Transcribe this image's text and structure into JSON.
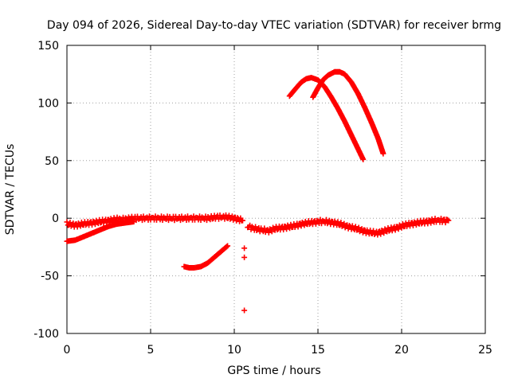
{
  "chart_data": {
    "type": "scatter",
    "title": "Day 094 of 2026, Sidereal Day-to-day VTEC variation (SDTVAR) for receiver brmg",
    "xlabel": "GPS time / hours",
    "ylabel": "SDTVAR / TECUs",
    "xlim": [
      0,
      25
    ],
    "ylim": [
      -100,
      150
    ],
    "xticks": [
      0,
      5,
      10,
      15,
      20,
      25
    ],
    "yticks": [
      -100,
      -50,
      0,
      50,
      100,
      150
    ],
    "grid": true,
    "marker": "plus",
    "color": "#ff0000",
    "series": [
      {
        "name": "baseline",
        "x": [
          0.0,
          0.5,
          1.0,
          1.5,
          2.0,
          2.5,
          3.0,
          3.5,
          4.0,
          4.5,
          5.0,
          5.5,
          6.0,
          6.5,
          7.0,
          7.5,
          8.0,
          8.5,
          9.0,
          9.5,
          10.0,
          10.5
        ],
        "y": [
          -5,
          -6,
          -5,
          -4,
          -3,
          -2,
          -1,
          -1,
          0,
          0,
          0,
          0,
          0,
          0,
          0,
          0,
          0,
          0,
          1,
          1,
          0,
          -2
        ]
      },
      {
        "name": "baseline-2",
        "x": [
          10.8,
          11.2,
          11.6,
          12.0,
          12.5,
          13.0,
          13.5,
          14.0,
          14.5,
          15.0,
          15.5,
          16.0,
          16.5,
          17.0,
          17.5,
          18.0,
          18.5,
          19.0,
          19.5,
          20.0,
          20.5,
          21.0,
          21.5,
          22.0,
          22.5,
          22.8
        ],
        "y": [
          -7,
          -9,
          -10,
          -11,
          -9,
          -8,
          -7,
          -5,
          -4,
          -3,
          -3,
          -4,
          -6,
          -8,
          -10,
          -12,
          -13,
          -11,
          -9,
          -7,
          -5,
          -4,
          -3,
          -2,
          -2,
          -2
        ]
      },
      {
        "name": "ramp-early",
        "x": [
          0.0,
          0.5,
          1.0,
          1.5,
          2.0,
          2.5,
          3.0,
          3.5,
          4.0
        ],
        "y": [
          -20,
          -19,
          -16,
          -13,
          -10,
          -7,
          -5,
          -4,
          -3
        ]
      },
      {
        "name": "ramp-mid",
        "x": [
          7.0,
          7.3,
          7.6,
          8.0,
          8.4,
          8.8,
          9.2,
          9.6
        ],
        "y": [
          -42,
          -43,
          -43,
          -42,
          -39,
          -34,
          -29,
          -24
        ]
      },
      {
        "name": "outliers",
        "x": [
          10.6,
          10.6,
          10.6
        ],
        "y": [
          -26,
          -34,
          -80
        ]
      },
      {
        "name": "arc-1",
        "x": [
          13.3,
          13.7,
          14.0,
          14.3,
          14.6,
          15.0,
          15.4,
          15.8,
          16.2,
          16.6,
          17.0,
          17.4,
          17.7
        ],
        "y": [
          106,
          113,
          118,
          121,
          122,
          120,
          114,
          105,
          95,
          84,
          72,
          60,
          51
        ]
      },
      {
        "name": "arc-2",
        "x": [
          14.7,
          15.0,
          15.3,
          15.6,
          16.0,
          16.3,
          16.6,
          17.0,
          17.4,
          17.8,
          18.2,
          18.6,
          18.9
        ],
        "y": [
          105,
          113,
          120,
          124,
          127,
          127,
          125,
          118,
          108,
          96,
          83,
          69,
          56
        ]
      }
    ]
  }
}
